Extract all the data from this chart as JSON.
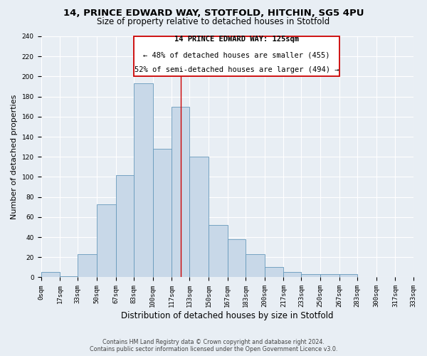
{
  "title_line1": "14, PRINCE EDWARD WAY, STOTFOLD, HITCHIN, SG5 4PU",
  "title_line2": "Size of property relative to detached houses in Stotfold",
  "xlabel": "Distribution of detached houses by size in Stotfold",
  "ylabel": "Number of detached properties",
  "bar_values": [
    5,
    1,
    23,
    73,
    102,
    193,
    128,
    170,
    120,
    52,
    38,
    23,
    10,
    5,
    3,
    3,
    3
  ],
  "bin_labels": [
    "0sqm",
    "17sqm",
    "33sqm",
    "50sqm",
    "67sqm",
    "83sqm",
    "100sqm",
    "117sqm",
    "133sqm",
    "150sqm",
    "167sqm",
    "183sqm",
    "200sqm",
    "217sqm",
    "233sqm",
    "250sqm",
    "267sqm",
    "283sqm",
    "300sqm",
    "317sqm",
    "333sqm"
  ],
  "bin_edges": [
    0,
    17,
    33,
    50,
    67,
    83,
    100,
    117,
    133,
    150,
    167,
    183,
    200,
    217,
    233,
    250,
    267,
    283,
    300,
    317,
    333
  ],
  "bar_color": "#c8d8e8",
  "bar_edge_color": "#6699bb",
  "vline_x": 125,
  "vline_color": "#cc0000",
  "annotation_line1": "14 PRINCE EDWARD WAY: 125sqm",
  "annotation_line2": "← 48% of detached houses are smaller (455)",
  "annotation_line3": "52% of semi-detached houses are larger (494) →",
  "annotation_box_color": "#ffffff",
  "annotation_box_edge_color": "#cc0000",
  "ylim": [
    0,
    240
  ],
  "yticks": [
    0,
    20,
    40,
    60,
    80,
    100,
    120,
    140,
    160,
    180,
    200,
    220,
    240
  ],
  "bg_color": "#e8eef4",
  "footer_line1": "Contains HM Land Registry data © Crown copyright and database right 2024.",
  "footer_line2": "Contains public sector information licensed under the Open Government Licence v3.0.",
  "grid_color": "#ffffff",
  "title_fontsize": 9.5,
  "subtitle_fontsize": 8.5,
  "xlabel_fontsize": 8.5,
  "ylabel_fontsize": 8,
  "tick_fontsize": 6.5,
  "annotation_fontsize": 7.5,
  "footer_fontsize": 5.8
}
